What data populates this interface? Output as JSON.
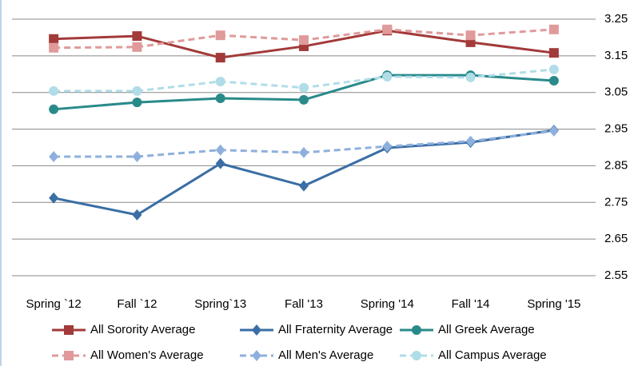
{
  "chart_data": {
    "type": "line",
    "categories": [
      "Spring `12",
      "Fall `12",
      "Spring`13",
      "Fall '13",
      "Spring '14",
      "Fall '14",
      "Spring '15"
    ],
    "series": [
      {
        "name": "All Sorority Average",
        "color": "#a33a3a",
        "dash": false,
        "marker": "square",
        "values": [
          3.196,
          3.204,
          3.145,
          3.176,
          3.219,
          3.187,
          3.158
        ]
      },
      {
        "name": "All Fraternity Average",
        "color": "#3a6ea5",
        "dash": false,
        "marker": "diamond",
        "values": [
          2.762,
          2.716,
          2.856,
          2.795,
          2.899,
          2.914,
          2.947
        ]
      },
      {
        "name": "All Greek Average",
        "color": "#2a8a8a",
        "dash": false,
        "marker": "circle",
        "values": [
          3.004,
          3.023,
          3.034,
          3.03,
          3.097,
          3.097,
          3.082
        ]
      },
      {
        "name": "All Women's Average",
        "color": "#e09a9a",
        "dash": true,
        "marker": "square",
        "values": [
          3.172,
          3.174,
          3.206,
          3.193,
          3.222,
          3.206,
          3.222
        ]
      },
      {
        "name": "All Men's Average",
        "color": "#8fb0dd",
        "dash": true,
        "marker": "diamond",
        "values": [
          2.875,
          2.875,
          2.893,
          2.886,
          2.903,
          2.917,
          2.945
        ]
      },
      {
        "name": "All Campus Average",
        "color": "#b0dde8",
        "dash": true,
        "marker": "circle",
        "values": [
          3.054,
          3.054,
          3.08,
          3.063,
          3.093,
          3.091,
          3.113
        ]
      }
    ],
    "ylim": [
      2.55,
      3.25
    ],
    "yticks": [
      2.55,
      2.65,
      2.75,
      2.85,
      2.95,
      3.05,
      3.15,
      3.25
    ],
    "grid": true,
    "legend": "bottom"
  }
}
